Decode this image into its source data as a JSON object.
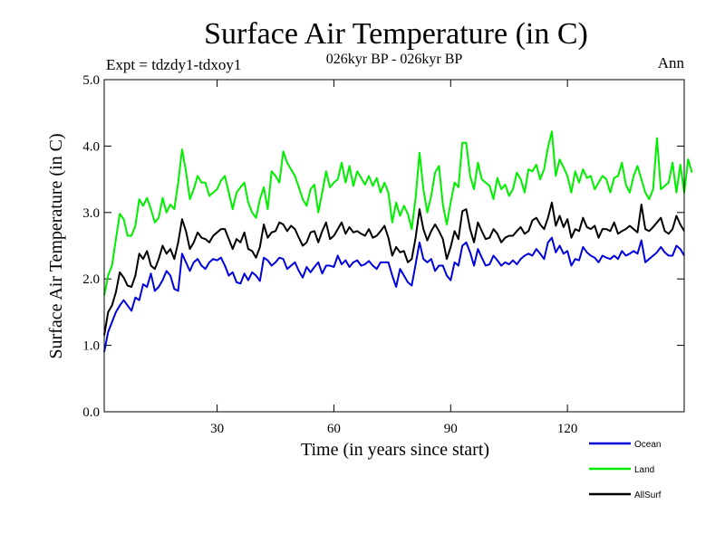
{
  "chart_data": {
    "type": "line",
    "title": "Surface Air Temperature (in C)",
    "subtitle": "026kyr BP - 026kyr BP",
    "left_label": "Expt = tdzdy1-tdxoy1",
    "right_label": "Ann",
    "xlabel": "Time (in years since start)",
    "ylabel": "Surface Air Temperature (in C)",
    "xlim": [
      1,
      150
    ],
    "ylim": [
      0,
      5
    ],
    "xticks": [
      30,
      60,
      90,
      120
    ],
    "xtick_labels": [
      "30",
      "60",
      "90",
      "120"
    ],
    "yticks": [
      0,
      1,
      2,
      3,
      4,
      5
    ],
    "ytick_labels": [
      "0.0",
      "1.0",
      "2.0",
      "3.0",
      "4.0",
      "5.0"
    ],
    "grid": false,
    "legend_position": "bottom-right",
    "series": [
      {
        "name": "Ocean",
        "color": "#0000dd",
        "values": [
          0.9,
          1.2,
          1.35,
          1.5,
          1.6,
          1.68,
          1.6,
          1.52,
          1.72,
          1.68,
          1.92,
          1.88,
          2.08,
          1.82,
          1.88,
          1.98,
          2.12,
          2.05,
          1.85,
          1.82,
          2.38,
          2.25,
          2.12,
          2.25,
          2.3,
          2.2,
          2.15,
          2.25,
          2.3,
          2.28,
          2.32,
          2.2,
          2.05,
          2.1,
          1.95,
          1.93,
          2.08,
          1.98,
          2.1,
          2.05,
          1.97,
          2.32,
          2.28,
          2.2,
          2.25,
          2.32,
          2.3,
          2.15,
          2.2,
          2.25,
          2.12,
          2.02,
          2.18,
          2.1,
          2.18,
          2.25,
          2.08,
          2.2,
          2.2,
          2.18,
          2.35,
          2.22,
          2.28,
          2.18,
          2.25,
          2.28,
          2.2,
          2.22,
          2.27,
          2.2,
          2.15,
          2.25,
          2.25,
          2.25,
          2.05,
          1.88,
          2.15,
          2.05,
          1.95,
          1.9,
          2.22,
          2.55,
          2.3,
          2.25,
          2.3,
          2.12,
          2.2,
          2.2,
          2.05,
          1.98,
          2.25,
          2.2,
          2.5,
          2.55,
          2.4,
          2.2,
          2.45,
          2.32,
          2.2,
          2.22,
          2.35,
          2.28,
          2.2,
          2.25,
          2.22,
          2.28,
          2.22,
          2.3,
          2.35,
          2.38,
          2.35,
          2.45,
          2.38,
          2.3,
          2.55,
          2.62,
          2.4,
          2.5,
          2.38,
          2.42,
          2.2,
          2.3,
          2.28,
          2.48,
          2.4,
          2.35,
          2.32,
          2.25,
          2.35,
          2.32,
          2.3,
          2.35,
          2.3,
          2.42,
          2.35,
          2.38,
          2.42,
          2.38,
          2.58,
          2.25,
          2.3,
          2.35,
          2.4,
          2.48,
          2.4,
          2.35,
          2.35,
          2.5,
          2.45,
          2.35
        ]
      },
      {
        "name": "Land",
        "color": "#00ee00",
        "values": [
          1.75,
          2.05,
          2.2,
          2.6,
          2.98,
          2.9,
          2.65,
          2.65,
          2.8,
          3.2,
          3.1,
          3.22,
          3.05,
          2.85,
          2.92,
          3.22,
          3.0,
          3.12,
          3.05,
          3.45,
          3.95,
          3.62,
          3.2,
          3.35,
          3.55,
          3.45,
          3.45,
          3.25,
          3.3,
          3.35,
          3.48,
          3.55,
          3.3,
          3.05,
          3.3,
          3.38,
          3.45,
          3.15,
          3.0,
          2.92,
          3.2,
          3.38,
          3.05,
          3.62,
          3.55,
          3.45,
          3.92,
          3.75,
          3.65,
          3.55,
          3.38,
          3.2,
          3.1,
          3.35,
          3.42,
          3.0,
          3.3,
          3.62,
          3.38,
          3.45,
          3.5,
          3.75,
          3.45,
          3.7,
          3.4,
          3.62,
          3.52,
          3.42,
          3.55,
          3.4,
          3.52,
          3.3,
          3.45,
          3.3,
          2.85,
          3.15,
          2.95,
          3.1,
          2.98,
          2.75,
          3.22,
          3.9,
          3.35,
          3.0,
          3.25,
          3.6,
          3.7,
          3.12,
          2.82,
          3.15,
          3.45,
          3.38,
          4.05,
          4.05,
          3.55,
          3.35,
          3.75,
          3.5,
          3.45,
          3.4,
          3.2,
          3.52,
          3.35,
          3.42,
          3.25,
          3.35,
          3.6,
          3.5,
          3.3,
          3.65,
          3.62,
          3.72,
          3.5,
          3.65,
          3.98,
          4.22,
          3.55,
          3.8,
          3.68,
          3.55,
          3.3,
          3.62,
          3.45,
          3.65,
          3.52,
          3.55,
          3.35,
          3.45,
          3.55,
          3.5,
          3.3,
          3.52,
          3.55,
          3.75,
          3.42,
          3.3,
          3.55,
          3.7,
          3.5,
          3.3,
          3.2,
          3.35,
          4.12,
          3.35,
          3.4,
          3.45,
          3.75,
          3.3,
          3.72,
          3.3,
          3.8,
          3.6
        ]
      },
      {
        "name": "AllSurf",
        "color": "#000000",
        "values": [
          1.15,
          1.5,
          1.6,
          1.8,
          2.1,
          2.02,
          1.9,
          1.88,
          2.05,
          2.38,
          2.3,
          2.42,
          2.2,
          2.15,
          2.3,
          2.5,
          2.38,
          2.45,
          2.3,
          2.55,
          2.9,
          2.72,
          2.45,
          2.55,
          2.7,
          2.62,
          2.6,
          2.55,
          2.65,
          2.7,
          2.75,
          2.75,
          2.6,
          2.45,
          2.6,
          2.55,
          2.7,
          2.45,
          2.42,
          2.32,
          2.48,
          2.82,
          2.62,
          2.7,
          2.72,
          2.85,
          2.82,
          2.72,
          2.8,
          2.75,
          2.62,
          2.5,
          2.55,
          2.7,
          2.72,
          2.55,
          2.72,
          2.85,
          2.6,
          2.65,
          2.75,
          2.85,
          2.68,
          2.78,
          2.7,
          2.72,
          2.68,
          2.65,
          2.75,
          2.62,
          2.65,
          2.72,
          2.8,
          2.62,
          2.35,
          2.48,
          2.4,
          2.42,
          2.25,
          2.3,
          2.62,
          3.05,
          2.75,
          2.58,
          2.72,
          2.82,
          2.72,
          2.6,
          2.3,
          2.48,
          2.72,
          2.6,
          3.02,
          3.05,
          2.75,
          2.55,
          2.85,
          2.72,
          2.6,
          2.62,
          2.75,
          2.68,
          2.55,
          2.62,
          2.65,
          2.65,
          2.72,
          2.78,
          2.68,
          2.72,
          2.88,
          2.92,
          2.82,
          2.75,
          2.92,
          3.15,
          2.8,
          2.95,
          2.78,
          2.9,
          2.62,
          2.75,
          2.72,
          2.92,
          2.78,
          2.75,
          2.8,
          2.62,
          2.75,
          2.75,
          2.72,
          2.85,
          2.68,
          2.72,
          2.75,
          2.8,
          2.75,
          2.7,
          3.12,
          2.75,
          2.72,
          2.78,
          2.85,
          2.92,
          2.72,
          2.68,
          2.75,
          2.95,
          2.82,
          2.72
        ]
      }
    ]
  }
}
